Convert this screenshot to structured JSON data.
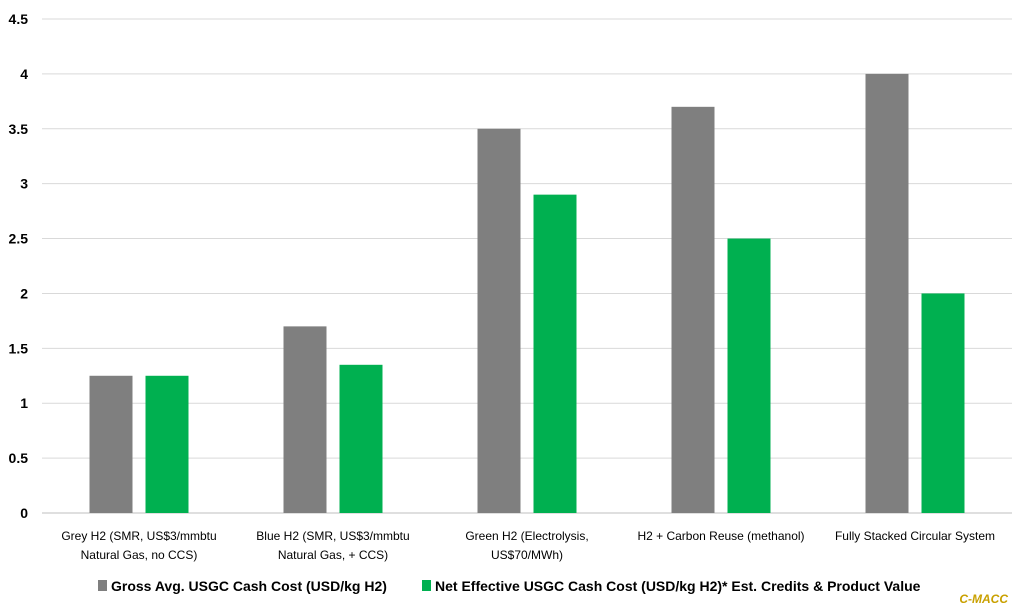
{
  "chart_data": {
    "type": "bar",
    "title": "",
    "xlabel": "",
    "ylabel": "",
    "ylim": [
      0,
      4.5
    ],
    "yticks": [
      "0",
      "0.5",
      "1",
      "1.5",
      "2",
      "2.5",
      "3",
      "3.5",
      "4",
      "4.5"
    ],
    "grid": true,
    "legend_position": "bottom",
    "categories": [
      [
        "Grey H2 (SMR, US$3/mmbtu",
        "Natural Gas, no CCS)"
      ],
      [
        "Blue H2 (SMR, US$3/mmbtu",
        "Natural Gas, + CCS)"
      ],
      [
        "Green H2 (Electrolysis,",
        "US$70/MWh)"
      ],
      [
        "H2 + Carbon Reuse (methanol)"
      ],
      [
        "Fully Stacked Circular System"
      ]
    ],
    "series": [
      {
        "name": "Gross Avg. USGC Cash Cost (USD/kg H2)",
        "color": "#7f7f7f",
        "values": [
          1.25,
          1.7,
          3.5,
          3.7,
          4.0
        ]
      },
      {
        "name": "Net Effective USGC Cash Cost (USD/kg H2)* Est. Credits & Product Value",
        "color": "#00b050",
        "values": [
          1.25,
          1.35,
          2.9,
          2.5,
          2.0
        ]
      }
    ]
  },
  "watermark": "C-MACC"
}
